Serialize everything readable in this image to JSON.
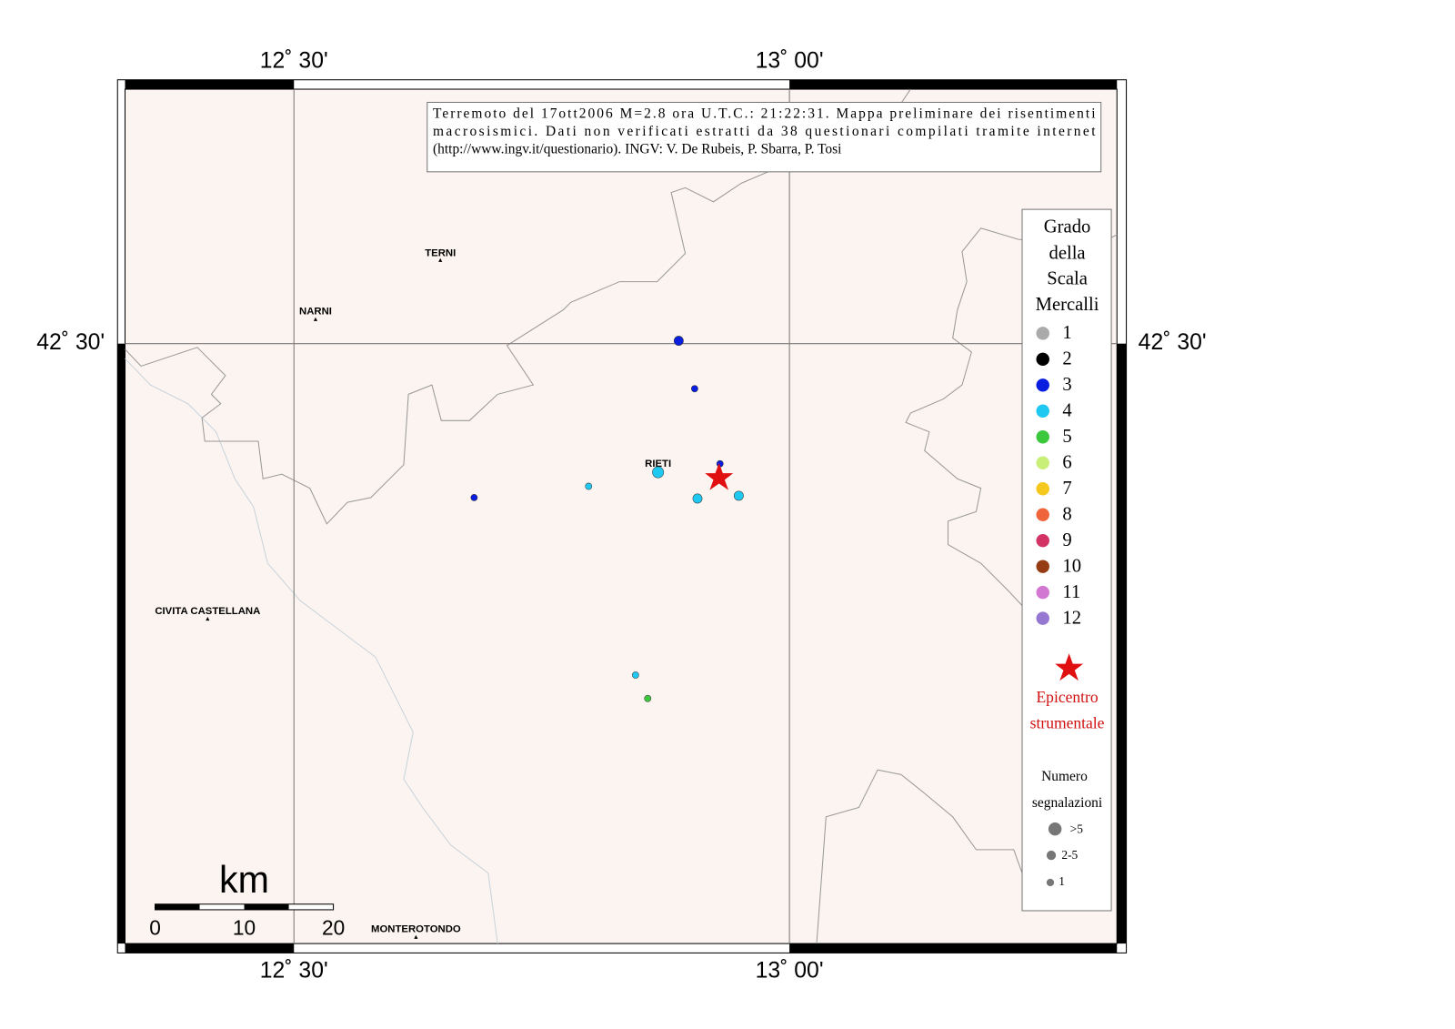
{
  "map": {
    "top_labels": [
      "12˚ 30'",
      "13˚ 00'"
    ],
    "bottom_labels": [
      "12˚ 30'",
      "13˚ 00'"
    ],
    "left_label": "42˚ 30'",
    "right_label": "42˚ 30'",
    "info_box": [
      "Terremoto del 17ott2006 M=2.8 ora U.T.C.: 21:22:31.  Mappa preliminare dei risentimenti",
      "macrosismici.  Dati non verificati estratti da 38 questionari compilati tramite internet",
      "(http://www.ingv.it/questionario).  INGV: V.  De Rubeis, P.  Sbarra, P.  Tosi"
    ],
    "places": [
      "TERNI",
      "NARNI",
      "RIETI",
      "CIVITA CASTELLANA",
      "MONTEROTONDO"
    ],
    "scale_bar": {
      "unit": "km",
      "ticks": [
        0,
        10,
        20
      ]
    },
    "points": [
      {
        "intensity": 3
      },
      {
        "intensity": 3
      },
      {
        "intensity": 3
      },
      {
        "intensity": 4
      },
      {
        "intensity": 4
      },
      {
        "intensity": 3
      },
      {
        "intensity": 4
      },
      {
        "intensity": 4
      },
      {
        "intensity": 4
      },
      {
        "intensity": 5
      }
    ]
  },
  "legend": {
    "title": [
      "Grado",
      "della",
      "Scala",
      "Mercalli"
    ],
    "grades": [
      {
        "value": 1,
        "color": "#aaaaaa"
      },
      {
        "value": 2,
        "color": "#000000"
      },
      {
        "value": 3,
        "color": "#0a1ee0"
      },
      {
        "value": 4,
        "color": "#1ec8f0"
      },
      {
        "value": 5,
        "color": "#3cc83c"
      },
      {
        "value": 6,
        "color": "#c8f078"
      },
      {
        "value": 7,
        "color": "#f5c81e"
      },
      {
        "value": 8,
        "color": "#f0643c"
      },
      {
        "value": 9,
        "color": "#d23264"
      },
      {
        "value": 10,
        "color": "#963c14"
      },
      {
        "value": 11,
        "color": "#d278d2"
      },
      {
        "value": 12,
        "color": "#9678d2"
      }
    ],
    "epicenter": [
      "Epicentro",
      "strumentale"
    ],
    "count_title": [
      "Numero",
      "segnalazioni"
    ],
    "count_classes": [
      ">5",
      "2-5",
      "1"
    ]
  }
}
